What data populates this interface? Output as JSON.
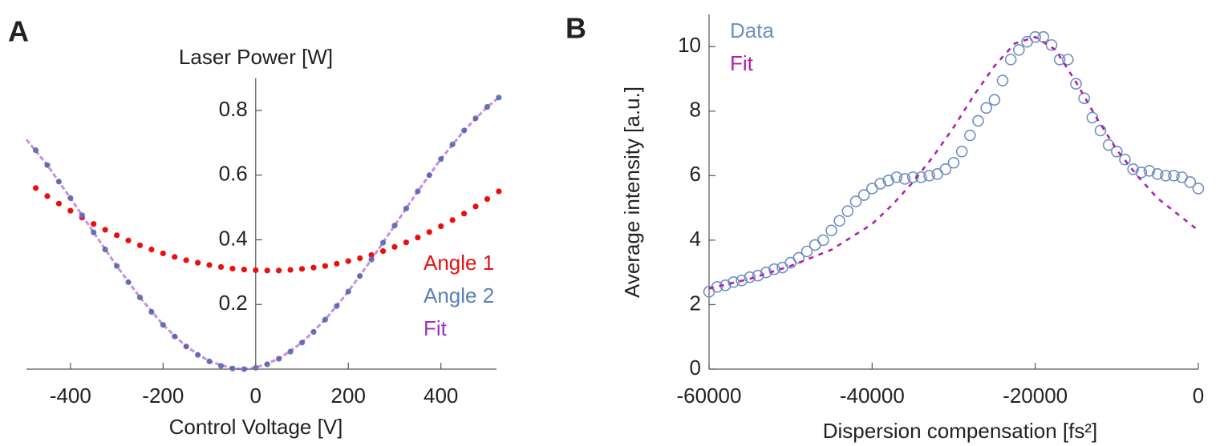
{
  "chart_data": [
    {
      "type": "scatter",
      "panel_label": "A",
      "ylabel": "Laser Power [W]",
      "xlabel": "Control Voltage [V]",
      "xlim": [
        -495,
        520
      ],
      "ylim": [
        0,
        0.9
      ],
      "xticks": [
        -400,
        -200,
        0,
        200,
        400
      ],
      "yticks": [
        0.2,
        0.4,
        0.6,
        0.8
      ],
      "legend": "right",
      "series": [
        {
          "name": "Angle 1",
          "color": "#e8100f",
          "marker": "dot",
          "x": [
            -475,
            -450,
            -425,
            -400,
            -375,
            -350,
            -325,
            -300,
            -275,
            -250,
            -225,
            -200,
            -175,
            -150,
            -125,
            -100,
            -75,
            -50,
            -25,
            0,
            25,
            50,
            75,
            100,
            125,
            150,
            175,
            200,
            225,
            250,
            275,
            300,
            325,
            350,
            375,
            400,
            425,
            450,
            475,
            500,
            525
          ],
          "values": [
            0.56,
            0.535,
            0.512,
            0.49,
            0.469,
            0.449,
            0.431,
            0.414,
            0.398,
            0.383,
            0.37,
            0.358,
            0.347,
            0.337,
            0.329,
            0.322,
            0.316,
            0.311,
            0.308,
            0.306,
            0.305,
            0.305,
            0.307,
            0.31,
            0.314,
            0.319,
            0.326,
            0.334,
            0.343,
            0.353,
            0.365,
            0.378,
            0.392,
            0.407,
            0.424,
            0.442,
            0.461,
            0.481,
            0.503,
            0.526,
            0.55
          ]
        },
        {
          "name": "Angle 2",
          "color": "#5b7fb5",
          "marker": "dot",
          "x": [
            -475,
            -450,
            -425,
            -400,
            -375,
            -350,
            -325,
            -300,
            -275,
            -250,
            -225,
            -200,
            -175,
            -150,
            -125,
            -100,
            -75,
            -50,
            -25,
            0,
            25,
            50,
            75,
            100,
            125,
            150,
            175,
            200,
            225,
            250,
            275,
            300,
            325,
            350,
            375,
            400,
            425,
            450,
            475,
            500,
            525
          ],
          "values": [
            0.677,
            0.631,
            0.58,
            0.529,
            0.476,
            0.423,
            0.37,
            0.319,
            0.269,
            0.222,
            0.177,
            0.137,
            0.101,
            0.07,
            0.044,
            0.024,
            0.01,
            0.002,
            0,
            0.004,
            0.015,
            0.032,
            0.054,
            0.082,
            0.115,
            0.153,
            0.195,
            0.24,
            0.288,
            0.339,
            0.391,
            0.444,
            0.497,
            0.55,
            0.6,
            0.65,
            0.695,
            0.738,
            0.776,
            0.811,
            0.84
          ]
        },
        {
          "name": "Fit",
          "color": "#a030c0",
          "marker": "line",
          "x": [
            -495,
            -450,
            -400,
            -350,
            -300,
            -250,
            -200,
            -150,
            -100,
            -50,
            -25,
            0,
            50,
            100,
            150,
            200,
            250,
            300,
            350,
            400,
            450,
            500,
            525
          ],
          "values": [
            0.71,
            0.631,
            0.529,
            0.423,
            0.319,
            0.222,
            0.137,
            0.07,
            0.024,
            0.002,
            0,
            0.004,
            0.032,
            0.082,
            0.153,
            0.24,
            0.339,
            0.444,
            0.55,
            0.65,
            0.738,
            0.811,
            0.84
          ]
        }
      ]
    },
    {
      "type": "scatter",
      "panel_label": "B",
      "ylabel": "Average intensity [a.u.]",
      "xlabel": "Dispersion compensation [fs²]",
      "xlim": [
        -60000,
        0
      ],
      "ylim": [
        0,
        11
      ],
      "xticks": [
        -60000,
        -40000,
        -20000,
        0
      ],
      "yticks": [
        0,
        2,
        4,
        6,
        8,
        10
      ],
      "legend": "upper left",
      "series": [
        {
          "name": "Data",
          "color": "#6f8fc0",
          "marker": "circle",
          "x": [
            -60000,
            -59000,
            -58000,
            -57000,
            -56000,
            -55000,
            -54000,
            -53000,
            -52000,
            -51000,
            -50000,
            -49000,
            -48000,
            -47000,
            -46000,
            -45000,
            -44000,
            -43000,
            -42000,
            -41000,
            -40000,
            -39000,
            -38000,
            -37000,
            -36000,
            -35000,
            -34000,
            -33000,
            -32000,
            -31000,
            -30000,
            -29000,
            -28000,
            -27000,
            -26000,
            -25000,
            -24000,
            -23000,
            -22000,
            -21000,
            -20000,
            -19000,
            -18000,
            -17000,
            -16000,
            -15000,
            -14000,
            -13000,
            -12000,
            -11000,
            -10000,
            -9000,
            -8000,
            -7000,
            -6000,
            -5000,
            -4000,
            -3000,
            -2000,
            -1000,
            0
          ],
          "values": [
            2.4,
            2.55,
            2.6,
            2.7,
            2.75,
            2.85,
            2.9,
            3.0,
            3.1,
            3.15,
            3.3,
            3.45,
            3.65,
            3.85,
            4.0,
            4.3,
            4.6,
            4.9,
            5.2,
            5.4,
            5.6,
            5.75,
            5.85,
            5.95,
            5.9,
            5.95,
            5.95,
            6.0,
            6.05,
            6.2,
            6.4,
            6.75,
            7.25,
            7.7,
            8.1,
            8.35,
            8.95,
            9.6,
            9.9,
            10.15,
            10.3,
            10.3,
            10.05,
            9.6,
            9.6,
            8.85,
            8.4,
            7.8,
            7.4,
            6.95,
            6.75,
            6.5,
            6.2,
            6.1,
            6.15,
            6.05,
            6.0,
            6.0,
            5.95,
            5.8,
            5.6
          ]
        },
        {
          "name": "Fit",
          "color": "#b020b0",
          "marker": "dashed",
          "x": [
            -60000,
            -55000,
            -50000,
            -45000,
            -40000,
            -37500,
            -35000,
            -32500,
            -30000,
            -27500,
            -25000,
            -22500,
            -20000,
            -17500,
            -15000,
            -12500,
            -10000,
            -7500,
            -5000,
            -2500,
            0
          ],
          "values": [
            2.5,
            2.8,
            3.2,
            3.7,
            4.5,
            5.1,
            5.8,
            6.6,
            7.5,
            8.5,
            9.4,
            10.1,
            10.3,
            9.9,
            8.9,
            7.8,
            6.8,
            6.0,
            5.3,
            4.8,
            4.3
          ]
        }
      ]
    }
  ]
}
